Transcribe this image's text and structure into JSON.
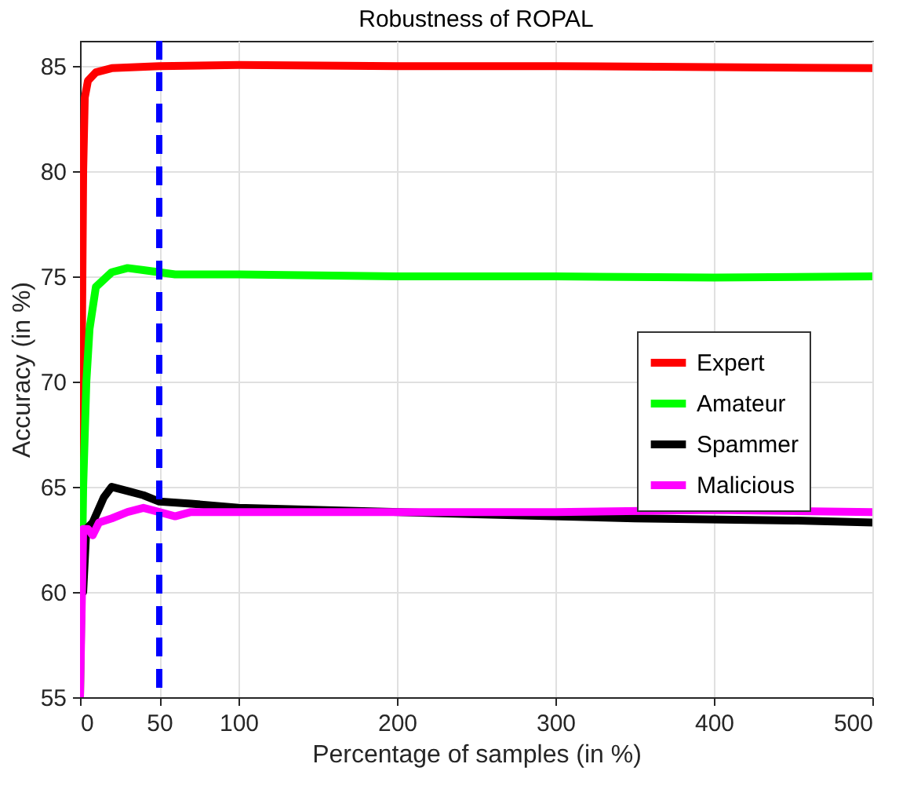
{
  "chart_data": {
    "type": "line",
    "title": "Robustness of ROPAL",
    "xlabel": "Percentage of samples (in %)",
    "ylabel": "Accuracy (in %)",
    "xlim": [
      0,
      500
    ],
    "ylim": [
      55,
      86.2
    ],
    "xticks": [
      0,
      50,
      100,
      200,
      300,
      400,
      500
    ],
    "yticks": [
      55,
      60,
      65,
      70,
      75,
      80,
      85
    ],
    "grid": true,
    "legend": "right",
    "line_style": "solid",
    "marker": "none",
    "ref_lines": [
      {
        "axis": "x",
        "value": 50,
        "color": "#0000ff",
        "line_style": "dashed"
      }
    ],
    "series": [
      {
        "name": "Expert",
        "color": "#ff0000",
        "x": [
          0,
          1,
          2,
          3,
          5,
          10,
          20,
          50,
          100,
          200,
          300,
          400,
          500
        ],
        "values": [
          55,
          70,
          80,
          83.5,
          84.3,
          84.7,
          84.9,
          85,
          85.05,
          85,
          85,
          84.95,
          84.9
        ]
      },
      {
        "name": "Amateur",
        "color": "#00ff00",
        "x": [
          0,
          2,
          4,
          6,
          10,
          20,
          30,
          40,
          50,
          60,
          100,
          200,
          300,
          400,
          500
        ],
        "values": [
          55,
          65,
          70,
          72.5,
          74.5,
          75.2,
          75.4,
          75.3,
          75.2,
          75.1,
          75.1,
          75,
          75,
          74.95,
          75
        ]
      },
      {
        "name": "Spammer",
        "color": "#000000",
        "x": [
          2,
          4,
          8,
          15,
          20,
          30,
          40,
          50,
          70,
          100,
          250,
          350,
          450,
          500
        ],
        "values": [
          60,
          63,
          63.3,
          64.5,
          65,
          64.8,
          64.6,
          64.3,
          64.2,
          64,
          63.7,
          63.5,
          63.4,
          63.3
        ]
      },
      {
        "name": "Malicious",
        "color": "#ff00ff",
        "x": [
          0,
          2,
          5,
          8,
          12,
          20,
          30,
          40,
          50,
          60,
          70,
          100,
          200,
          300,
          400,
          500
        ],
        "values": [
          55,
          63,
          63,
          62.7,
          63.3,
          63.5,
          63.8,
          64,
          63.8,
          63.6,
          63.8,
          63.8,
          63.8,
          63.8,
          63.9,
          63.8
        ]
      }
    ]
  }
}
